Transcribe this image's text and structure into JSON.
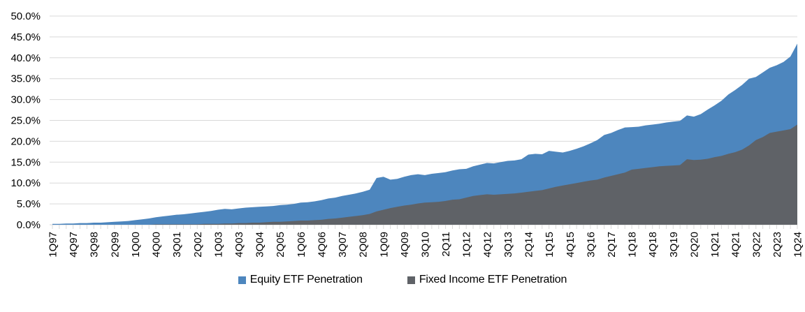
{
  "chart_data": {
    "type": "area",
    "title": "",
    "x_start": "1Q97",
    "x_end": "1Q24",
    "n_points": 109,
    "x_frequency": "quarterly",
    "x_tick_labels": [
      "1Q97",
      "4Q97",
      "3Q98",
      "2Q99",
      "1Q00",
      "4Q00",
      "3Q01",
      "2Q02",
      "1Q03",
      "4Q03",
      "3Q04",
      "2Q05",
      "1Q06",
      "4Q06",
      "3Q07",
      "2Q08",
      "1Q09",
      "4Q09",
      "3Q10",
      "2Q11",
      "1Q12",
      "4Q12",
      "3Q13",
      "2Q14",
      "1Q15",
      "4Q15",
      "3Q16",
      "2Q17",
      "1Q18",
      "4Q18",
      "3Q19",
      "2Q20",
      "1Q21",
      "4Q21",
      "3Q22",
      "2Q23",
      "1Q24"
    ],
    "x_label_every_n_points": 3,
    "y_tick_labels": [
      "0.0%",
      "5.0%",
      "10.0%",
      "15.0%",
      "20.0%",
      "25.0%",
      "30.0%",
      "35.0%",
      "40.0%",
      "45.0%",
      "50.0%"
    ],
    "ylim": [
      0,
      50
    ],
    "grid": true,
    "gridline_color": "#d9d9d9",
    "legend_position": "bottom",
    "overlap": true,
    "series": [
      {
        "name": "Equity ETF Penetration",
        "color": "#4d86be",
        "values": [
          0.2,
          0.2,
          0.3,
          0.3,
          0.4,
          0.4,
          0.5,
          0.5,
          0.6,
          0.7,
          0.8,
          0.9,
          1.1,
          1.3,
          1.5,
          1.8,
          2.0,
          2.2,
          2.4,
          2.5,
          2.7,
          2.9,
          3.1,
          3.3,
          3.6,
          3.8,
          3.7,
          3.9,
          4.1,
          4.2,
          4.3,
          4.4,
          4.5,
          4.7,
          4.8,
          5.0,
          5.3,
          5.4,
          5.6,
          5.9,
          6.3,
          6.5,
          6.9,
          7.2,
          7.5,
          7.9,
          8.4,
          11.2,
          11.5,
          10.8,
          11.0,
          11.5,
          11.9,
          12.1,
          11.9,
          12.2,
          12.4,
          12.6,
          13.0,
          13.3,
          13.4,
          14.0,
          14.4,
          14.8,
          14.7,
          15.0,
          15.3,
          15.4,
          15.7,
          16.8,
          17.0,
          16.9,
          17.7,
          17.5,
          17.3,
          17.7,
          18.2,
          18.8,
          19.5,
          20.3,
          21.5,
          22.0,
          22.7,
          23.3,
          23.4,
          23.5,
          23.8,
          24.0,
          24.2,
          24.5,
          24.7,
          24.9,
          26.2,
          25.9,
          26.5,
          27.6,
          28.6,
          29.7,
          31.2,
          32.3,
          33.5,
          35.0,
          35.4,
          36.5,
          37.6,
          38.2,
          39.0,
          40.3,
          43.4
        ]
      },
      {
        "name": "Fixed Income ETF Penetration",
        "color": "#5f6267",
        "values": [
          0,
          0,
          0,
          0,
          0,
          0,
          0,
          0,
          0,
          0,
          0,
          0,
          0,
          0,
          0,
          0.1,
          0.1,
          0.1,
          0.1,
          0.1,
          0.1,
          0.1,
          0.2,
          0.2,
          0.2,
          0.3,
          0.3,
          0.4,
          0.4,
          0.5,
          0.5,
          0.6,
          0.7,
          0.7,
          0.8,
          0.9,
          1.0,
          1.0,
          1.1,
          1.2,
          1.4,
          1.5,
          1.7,
          1.9,
          2.1,
          2.3,
          2.6,
          3.2,
          3.6,
          4.0,
          4.3,
          4.6,
          4.8,
          5.1,
          5.3,
          5.4,
          5.5,
          5.7,
          6.0,
          6.1,
          6.5,
          6.9,
          7.1,
          7.3,
          7.2,
          7.3,
          7.4,
          7.5,
          7.7,
          7.9,
          8.1,
          8.3,
          8.7,
          9.1,
          9.4,
          9.7,
          10.0,
          10.3,
          10.6,
          10.8,
          11.3,
          11.7,
          12.1,
          12.5,
          13.2,
          13.4,
          13.6,
          13.8,
          14.0,
          14.1,
          14.2,
          14.3,
          15.7,
          15.5,
          15.6,
          15.8,
          16.2,
          16.5,
          17.0,
          17.4,
          18.0,
          19.0,
          20.3,
          21.0,
          22.0,
          22.3,
          22.6,
          22.9,
          24.0
        ]
      }
    ]
  },
  "legend": {
    "items": [
      {
        "label": "Equity ETF Penetration",
        "color": "#4d86be"
      },
      {
        "label": "Fixed Income ETF Penetration",
        "color": "#5f6267"
      }
    ]
  }
}
